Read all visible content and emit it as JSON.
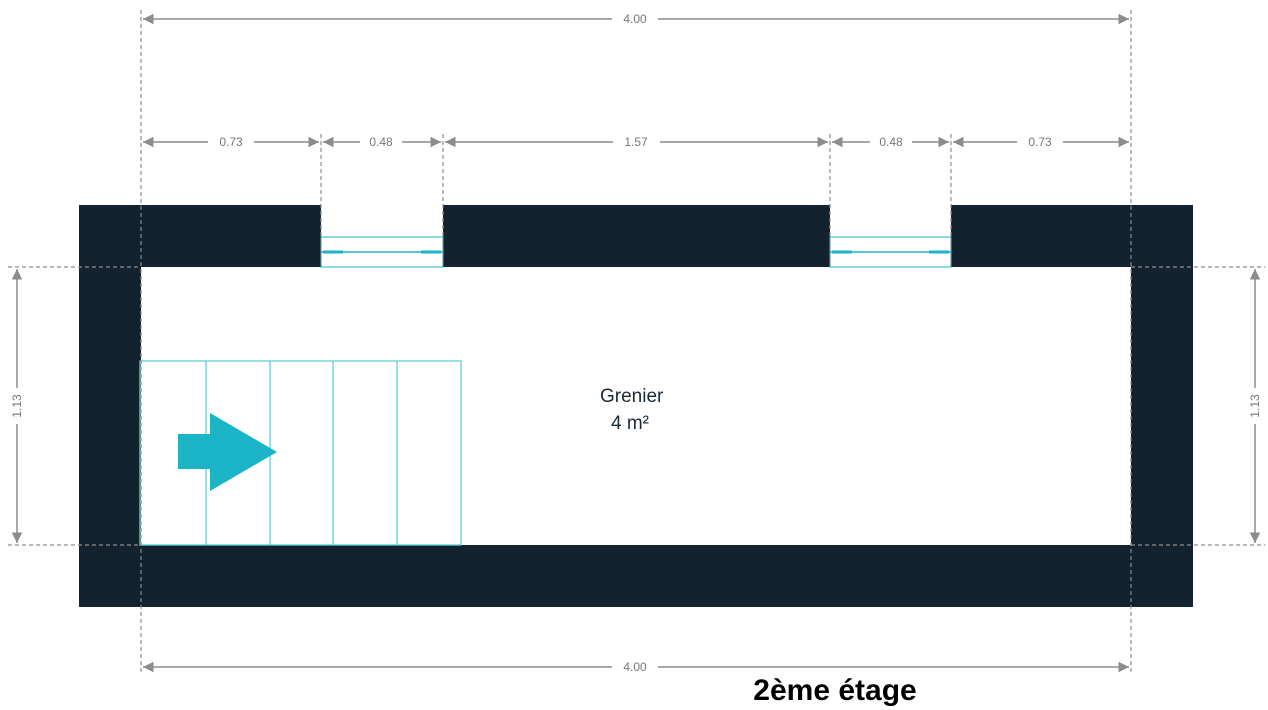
{
  "plan": {
    "room_name": "Grenier",
    "room_area": "4 m²",
    "floor_label": "2ème étage",
    "colors": {
      "wall": "#13222f",
      "accent": "#1bb3c6",
      "dimension": "#8c8c8c"
    },
    "dimensions": {
      "top_total": "4.00",
      "bottom_total": "4.00",
      "segments": [
        "0.73",
        "0.48",
        "1.57",
        "0.48",
        "0.73"
      ],
      "left_height": "1.13",
      "right_height": "1.13"
    },
    "stairs": {
      "direction": "right",
      "steps": 5
    },
    "windows": 2
  }
}
